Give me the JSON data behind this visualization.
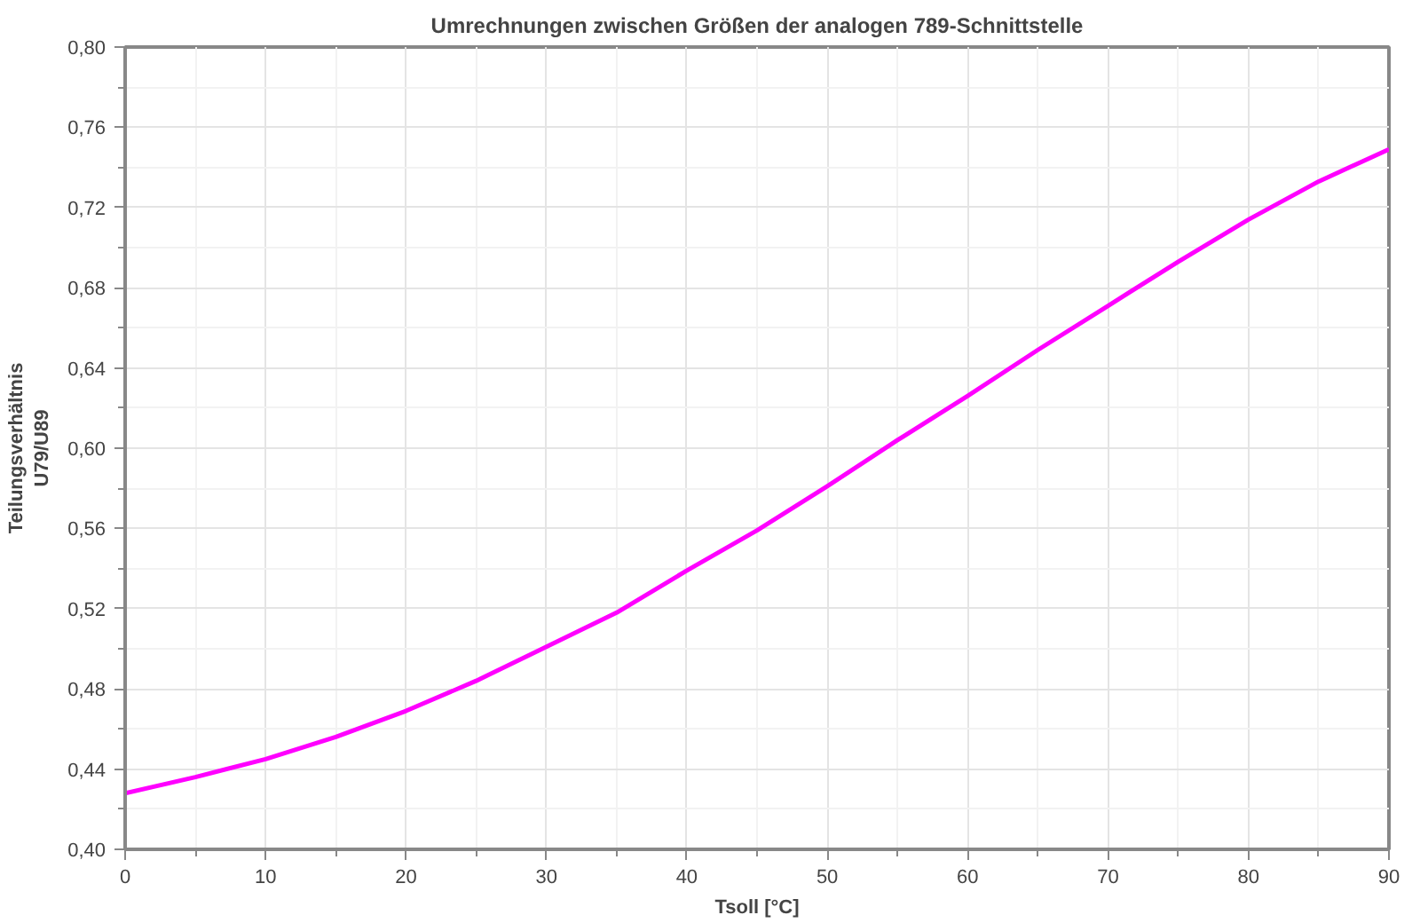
{
  "chart_data": {
    "type": "line",
    "title": "Umrechnungen zwischen Größen der analogen 789-Schnittstelle",
    "xlabel": "Tsoll [°C]",
    "ylabel": "Teilungsverhältnis\nU79/U89",
    "x": [
      0,
      5,
      10,
      15,
      20,
      25,
      30,
      35,
      40,
      45,
      50,
      55,
      60,
      65,
      70,
      75,
      80,
      85,
      90
    ],
    "series": [
      {
        "color": "#ff00ff",
        "values": [
          0.428,
          0.436,
          0.445,
          0.456,
          0.469,
          0.484,
          0.501,
          0.518,
          0.539,
          0.559,
          0.581,
          0.604,
          0.626,
          0.649,
          0.671,
          0.693,
          0.714,
          0.733,
          0.749
        ]
      }
    ],
    "xlim": [
      0,
      90
    ],
    "xticks": [
      0,
      10,
      20,
      30,
      40,
      50,
      60,
      70,
      80,
      90
    ],
    "ylim": [
      0.4,
      0.8
    ],
    "yticks": [
      {
        "value": 0.4,
        "label": "0,40"
      },
      {
        "value": 0.44,
        "label": "0,44"
      },
      {
        "value": 0.48,
        "label": "0,48"
      },
      {
        "value": 0.52,
        "label": "0,52"
      },
      {
        "value": 0.56,
        "label": "0,56"
      },
      {
        "value": 0.6,
        "label": "0,60"
      },
      {
        "value": 0.64,
        "label": "0,64"
      },
      {
        "value": 0.68,
        "label": "0,68"
      },
      {
        "value": 0.72,
        "label": "0,72"
      },
      {
        "value": 0.76,
        "label": "0,76"
      },
      {
        "value": 0.8,
        "label": "0,80"
      }
    ],
    "grid": true,
    "marker": "none",
    "line_style": "solid"
  }
}
